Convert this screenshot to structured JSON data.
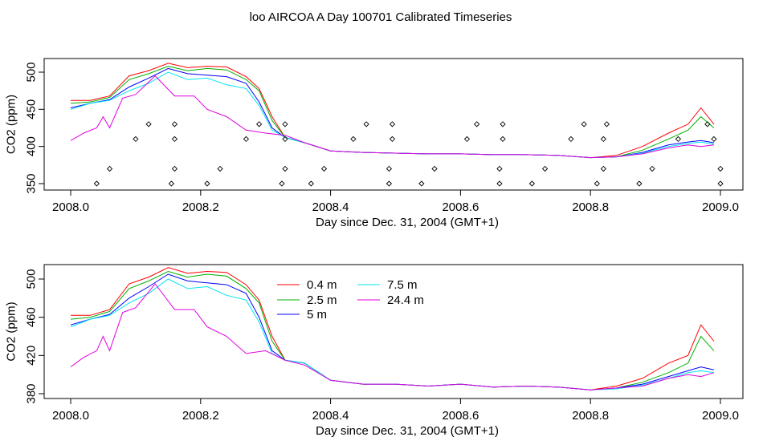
{
  "figure_title": "loo AIRCOA A  Day 100701  Calibrated Timeseries",
  "colors": {
    "0.4 m": "#ff0000",
    "2.5 m": "#00b000",
    "5 m": "#0000ff",
    "7.5 m": "#00e5ee",
    "24.4 m": "#e000e0"
  },
  "chart_data": [
    {
      "type": "line",
      "title": "",
      "xlabel": "Day since Dec. 31, 2004 (GMT+1)",
      "ylabel": "CO2 (ppm)",
      "xlim": [
        2008.0,
        2009.0
      ],
      "ylim": [
        345,
        515
      ],
      "xticks": [
        "2008.0",
        "2008.2",
        "2008.4",
        "2008.6",
        "2008.8",
        "2009.0"
      ],
      "yticks": [
        "350",
        "400",
        "450",
        "500"
      ],
      "legend": false,
      "series": [
        {
          "name": "0.4 m",
          "x": [
            2008.0,
            2008.03,
            2008.06,
            2008.09,
            2008.12,
            2008.15,
            2008.18,
            2008.21,
            2008.24,
            2008.27,
            2008.29,
            2008.31,
            2008.33,
            2008.36,
            2008.4,
            2008.45,
            2008.5,
            2008.55,
            2008.6,
            2008.65,
            2008.7,
            2008.75,
            2008.8,
            2008.84,
            2008.88,
            2008.92,
            2008.95,
            2008.97,
            2008.99
          ],
          "y": [
            462,
            462,
            468,
            495,
            502,
            512,
            506,
            508,
            507,
            494,
            478,
            440,
            412,
            405,
            394,
            392,
            391,
            390,
            390,
            389,
            389,
            388,
            385,
            388,
            400,
            418,
            430,
            452,
            430
          ]
        },
        {
          "name": "2.5 m",
          "x": [
            2008.0,
            2008.03,
            2008.06,
            2008.09,
            2008.12,
            2008.15,
            2008.18,
            2008.21,
            2008.24,
            2008.27,
            2008.29,
            2008.31,
            2008.33,
            2008.36,
            2008.4,
            2008.45,
            2008.5,
            2008.55,
            2008.6,
            2008.65,
            2008.7,
            2008.75,
            2008.8,
            2008.84,
            2008.88,
            2008.92,
            2008.95,
            2008.97,
            2008.99
          ],
          "y": [
            458,
            460,
            466,
            490,
            498,
            508,
            502,
            505,
            503,
            490,
            475,
            435,
            412,
            405,
            394,
            392,
            391,
            390,
            390,
            389,
            389,
            388,
            385,
            386,
            395,
            410,
            422,
            440,
            425
          ]
        },
        {
          "name": "5 m",
          "x": [
            2008.0,
            2008.03,
            2008.06,
            2008.09,
            2008.12,
            2008.15,
            2008.18,
            2008.21,
            2008.24,
            2008.27,
            2008.29,
            2008.31,
            2008.33,
            2008.36,
            2008.4,
            2008.45,
            2008.5,
            2008.55,
            2008.6,
            2008.65,
            2008.7,
            2008.75,
            2008.8,
            2008.84,
            2008.88,
            2008.92,
            2008.95,
            2008.97,
            2008.99
          ],
          "y": [
            452,
            458,
            463,
            480,
            492,
            505,
            498,
            496,
            494,
            485,
            460,
            425,
            412,
            405,
            394,
            392,
            391,
            390,
            390,
            389,
            389,
            388,
            385,
            386,
            392,
            402,
            406,
            408,
            405
          ]
        },
        {
          "name": "7.5 m",
          "x": [
            2008.0,
            2008.03,
            2008.06,
            2008.09,
            2008.12,
            2008.15,
            2008.18,
            2008.21,
            2008.24,
            2008.27,
            2008.29,
            2008.31,
            2008.33,
            2008.36,
            2008.4,
            2008.45,
            2008.5,
            2008.55,
            2008.6,
            2008.65,
            2008.7,
            2008.75,
            2008.8,
            2008.84,
            2008.88,
            2008.92,
            2008.95,
            2008.97,
            2008.99
          ],
          "y": [
            450,
            458,
            462,
            475,
            485,
            500,
            490,
            492,
            483,
            478,
            455,
            422,
            412,
            405,
            394,
            392,
            391,
            390,
            390,
            389,
            389,
            388,
            385,
            386,
            391,
            400,
            404,
            406,
            403
          ]
        },
        {
          "name": "24.4 m",
          "x": [
            2008.0,
            2008.02,
            2008.04,
            2008.05,
            2008.06,
            2008.08,
            2008.1,
            2008.13,
            2008.16,
            2008.19,
            2008.21,
            2008.24,
            2008.27,
            2008.3,
            2008.33,
            2008.36,
            2008.4,
            2008.45,
            2008.5,
            2008.55,
            2008.6,
            2008.65,
            2008.7,
            2008.75,
            2008.8,
            2008.84,
            2008.88,
            2008.92,
            2008.95,
            2008.97,
            2008.99
          ],
          "y": [
            408,
            418,
            425,
            440,
            425,
            465,
            470,
            495,
            468,
            468,
            450,
            440,
            422,
            418,
            415,
            405,
            394,
            392,
            391,
            390,
            390,
            389,
            389,
            388,
            385,
            386,
            390,
            398,
            402,
            400,
            402
          ]
        }
      ],
      "flag_points": {
        "x": [
          2008.04,
          2008.06,
          2008.1,
          2008.12,
          2008.155,
          2008.16,
          2008.16,
          2008.16,
          2008.21,
          2008.23,
          2008.27,
          2008.29,
          2008.325,
          2008.33,
          2008.33,
          2008.33,
          2008.37,
          2008.39,
          2008.435,
          2008.455,
          2008.49,
          2008.49,
          2008.495,
          2008.495,
          2008.54,
          2008.56,
          2008.61,
          2008.625,
          2008.66,
          2008.66,
          2008.665,
          2008.665,
          2008.71,
          2008.73,
          2008.77,
          2008.79,
          2008.81,
          2008.82,
          2008.82,
          2008.825,
          2008.875,
          2008.895,
          2008.935,
          2008.98,
          2008.99,
          2009.0,
          2009.0
        ],
        "y": [
          350,
          370,
          410,
          430,
          350,
          370,
          410,
          430,
          350,
          370,
          410,
          430,
          350,
          370,
          410,
          430,
          350,
          370,
          410,
          430,
          350,
          370,
          410,
          430,
          350,
          370,
          410,
          430,
          350,
          370,
          410,
          430,
          350,
          370,
          410,
          430,
          350,
          370,
          410,
          430,
          350,
          370,
          410,
          430,
          410,
          370,
          350
        ]
      }
    },
    {
      "type": "line",
      "title": "",
      "xlabel": "Day since Dec. 31, 2004 (GMT+1)",
      "ylabel": "CO2 (ppm)",
      "xlim": [
        2008.0,
        2009.0
      ],
      "ylim": [
        376,
        515
      ],
      "xticks": [
        "2008.0",
        "2008.2",
        "2008.4",
        "2008.6",
        "2008.8",
        "2009.0"
      ],
      "yticks": [
        "380",
        "420",
        "460",
        "500"
      ],
      "legend": true,
      "legend_placement": "top-center",
      "series": [
        {
          "name": "0.4 m",
          "x": [
            2008.0,
            2008.03,
            2008.06,
            2008.09,
            2008.12,
            2008.15,
            2008.18,
            2008.21,
            2008.24,
            2008.27,
            2008.29,
            2008.31,
            2008.33,
            2008.36,
            2008.4,
            2008.45,
            2008.5,
            2008.55,
            2008.6,
            2008.65,
            2008.7,
            2008.75,
            2008.8,
            2008.84,
            2008.88,
            2008.92,
            2008.95,
            2008.97,
            2008.99
          ],
          "y": [
            462,
            462,
            468,
            495,
            502,
            512,
            506,
            508,
            507,
            494,
            478,
            440,
            415,
            412,
            394,
            390,
            390,
            388,
            390,
            387,
            388,
            387,
            384,
            388,
            396,
            412,
            420,
            452,
            435
          ]
        },
        {
          "name": "2.5 m",
          "x": [
            2008.0,
            2008.03,
            2008.06,
            2008.09,
            2008.12,
            2008.15,
            2008.18,
            2008.21,
            2008.24,
            2008.27,
            2008.29,
            2008.31,
            2008.33,
            2008.36,
            2008.4,
            2008.45,
            2008.5,
            2008.55,
            2008.6,
            2008.65,
            2008.7,
            2008.75,
            2008.8,
            2008.84,
            2008.88,
            2008.92,
            2008.95,
            2008.97,
            2008.99
          ],
          "y": [
            458,
            460,
            466,
            490,
            498,
            508,
            502,
            505,
            503,
            490,
            475,
            435,
            415,
            412,
            394,
            390,
            390,
            388,
            390,
            387,
            388,
            387,
            384,
            386,
            392,
            402,
            412,
            440,
            425
          ]
        },
        {
          "name": "5 m",
          "x": [
            2008.0,
            2008.03,
            2008.06,
            2008.09,
            2008.12,
            2008.15,
            2008.18,
            2008.21,
            2008.24,
            2008.27,
            2008.29,
            2008.31,
            2008.33,
            2008.36,
            2008.4,
            2008.45,
            2008.5,
            2008.55,
            2008.6,
            2008.65,
            2008.7,
            2008.75,
            2008.8,
            2008.84,
            2008.88,
            2008.92,
            2008.95,
            2008.97,
            2008.99
          ],
          "y": [
            452,
            458,
            463,
            480,
            492,
            505,
            498,
            496,
            494,
            485,
            460,
            425,
            415,
            412,
            394,
            390,
            390,
            388,
            390,
            387,
            388,
            387,
            384,
            386,
            390,
            398,
            404,
            408,
            405
          ]
        },
        {
          "name": "7.5 m",
          "x": [
            2008.0,
            2008.03,
            2008.06,
            2008.09,
            2008.12,
            2008.15,
            2008.18,
            2008.21,
            2008.24,
            2008.27,
            2008.29,
            2008.31,
            2008.33,
            2008.36,
            2008.4,
            2008.45,
            2008.5,
            2008.55,
            2008.6,
            2008.65,
            2008.7,
            2008.75,
            2008.8,
            2008.84,
            2008.88,
            2008.92,
            2008.95,
            2008.97,
            2008.99
          ],
          "y": [
            450,
            458,
            462,
            475,
            485,
            500,
            490,
            492,
            483,
            478,
            455,
            422,
            415,
            412,
            394,
            390,
            390,
            388,
            390,
            387,
            388,
            387,
            384,
            385,
            389,
            396,
            402,
            404,
            402
          ]
        },
        {
          "name": "24.4 m",
          "x": [
            2008.0,
            2008.02,
            2008.04,
            2008.05,
            2008.06,
            2008.08,
            2008.1,
            2008.13,
            2008.16,
            2008.19,
            2008.21,
            2008.24,
            2008.27,
            2008.3,
            2008.33,
            2008.36,
            2008.4,
            2008.45,
            2008.5,
            2008.55,
            2008.6,
            2008.65,
            2008.7,
            2008.75,
            2008.8,
            2008.84,
            2008.88,
            2008.92,
            2008.95,
            2008.97,
            2008.99
          ],
          "y": [
            408,
            418,
            425,
            440,
            425,
            465,
            470,
            495,
            468,
            468,
            450,
            440,
            422,
            425,
            415,
            410,
            394,
            390,
            390,
            388,
            390,
            387,
            388,
            387,
            384,
            386,
            388,
            396,
            400,
            398,
            402
          ]
        }
      ]
    }
  ]
}
